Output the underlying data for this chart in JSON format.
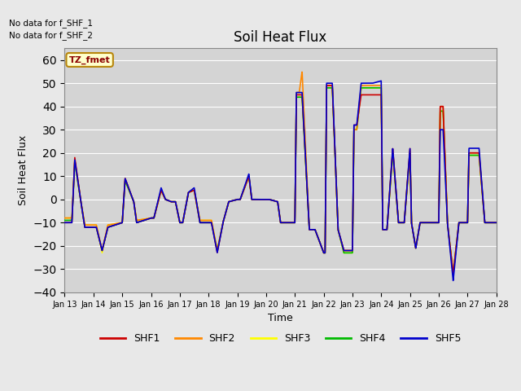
{
  "title": "Soil Heat Flux",
  "xlabel": "Time",
  "ylabel": "Soil Heat Flux",
  "ylim": [
    -40,
    65
  ],
  "yticks": [
    -40,
    -30,
    -20,
    -10,
    0,
    10,
    20,
    30,
    40,
    50,
    60
  ],
  "text_no_data": [
    "No data for f_SHF_1",
    "No data for f_SHF_2"
  ],
  "legend_label": "TZ_fmet",
  "series_colors": {
    "SHF1": "#cc0000",
    "SHF2": "#ff8800",
    "SHF3": "#ffff00",
    "SHF4": "#00bb00",
    "SHF5": "#0000cc"
  },
  "x_labels": [
    "Jan 13",
    "Jan 14",
    "Jan 15",
    "Jan 16",
    "Jan 17",
    "Jan 18",
    "Jan 19",
    "Jan 20",
    "Jan 21",
    "Jan 22",
    "Jan 23",
    "Jan 24",
    "Jan 25",
    "Jan 26",
    "Jan 27",
    "Jan 28"
  ]
}
